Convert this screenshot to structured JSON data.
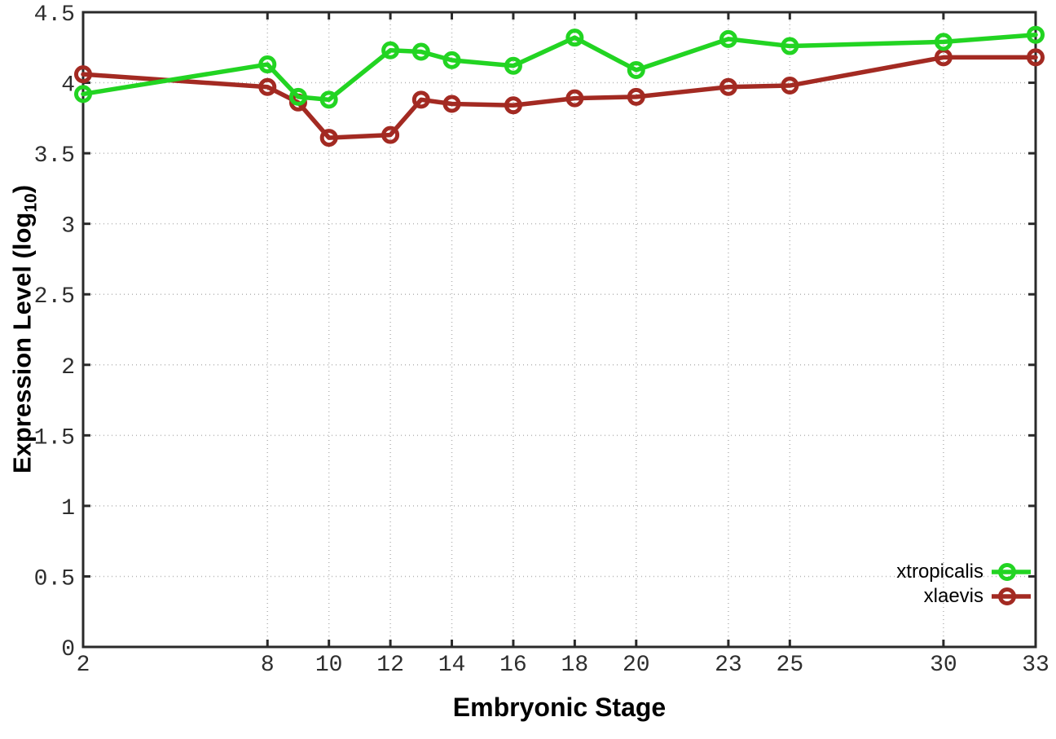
{
  "chart_data": {
    "type": "line",
    "title": "",
    "xlabel": "Embryonic Stage",
    "ylabel": "Expression Level (log10)",
    "ylabel_display": {
      "main": "Expression Level (log",
      "sub": "10",
      "suffix": ")"
    },
    "xlim": [
      2,
      33
    ],
    "ylim": [
      0,
      4.5
    ],
    "xticks": [
      2,
      8,
      10,
      12,
      14,
      16,
      18,
      20,
      23,
      25,
      30,
      33
    ],
    "yticks": [
      0,
      0.5,
      1,
      1.5,
      2,
      2.5,
      3,
      3.5,
      4,
      4.5
    ],
    "grid": true,
    "legend_position": "inside-bottom-right",
    "x": [
      2,
      8,
      9,
      10,
      12,
      13,
      14,
      16,
      18,
      20,
      23,
      25,
      30,
      33
    ],
    "series": [
      {
        "name": "xtropicalis",
        "color": "#22d422",
        "marker": "open-circle",
        "values": [
          3.92,
          4.13,
          3.9,
          3.88,
          4.23,
          4.22,
          4.16,
          4.12,
          4.32,
          4.09,
          4.31,
          4.26,
          4.29,
          4.34
        ]
      },
      {
        "name": "xlaevis",
        "color": "#a32a22",
        "marker": "open-circle",
        "values": [
          4.06,
          3.97,
          3.86,
          3.61,
          3.63,
          3.88,
          3.85,
          3.84,
          3.89,
          3.9,
          3.97,
          3.98,
          4.18,
          4.18
        ]
      }
    ],
    "style": {
      "axis_color": "#2a2a2a",
      "grid_color": "#b5b5b5",
      "tick_label_color": "#2e2e2e"
    }
  }
}
